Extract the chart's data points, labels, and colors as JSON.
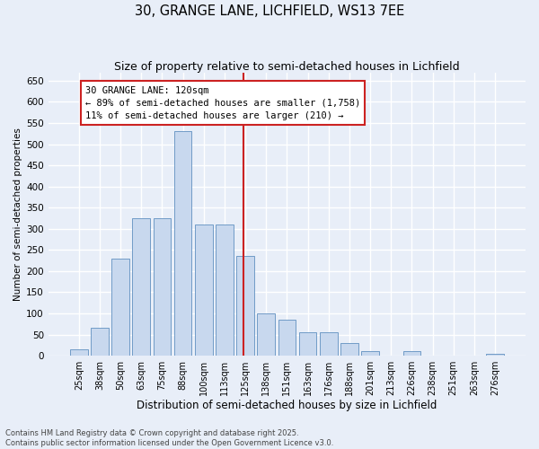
{
  "title": "30, GRANGE LANE, LICHFIELD, WS13 7EE",
  "subtitle": "Size of property relative to semi-detached houses in Lichfield",
  "xlabel": "Distribution of semi-detached houses by size in Lichfield",
  "ylabel": "Number of semi-detached properties",
  "categories": [
    "25sqm",
    "38sqm",
    "50sqm",
    "63sqm",
    "75sqm",
    "88sqm",
    "100sqm",
    "113sqm",
    "125sqm",
    "138sqm",
    "151sqm",
    "163sqm",
    "176sqm",
    "188sqm",
    "201sqm",
    "213sqm",
    "226sqm",
    "238sqm",
    "251sqm",
    "263sqm",
    "276sqm"
  ],
  "values": [
    15,
    65,
    230,
    325,
    325,
    530,
    310,
    310,
    235,
    100,
    85,
    55,
    55,
    30,
    10,
    0,
    10,
    0,
    0,
    0,
    5
  ],
  "bar_color": "#c8d8ee",
  "bar_edge_color": "#6090c0",
  "vline_pos": 7.925,
  "vline_color": "#cc2222",
  "annotation_text": "30 GRANGE LANE: 120sqm\n← 89% of semi-detached houses are smaller (1,758)\n11% of semi-detached houses are larger (210) →",
  "annotation_box_color": "#cc2222",
  "annotation_fontsize": 7.5,
  "ylim": [
    0,
    670
  ],
  "yticks": [
    0,
    50,
    100,
    150,
    200,
    250,
    300,
    350,
    400,
    450,
    500,
    550,
    600,
    650
  ],
  "title_fontsize": 10.5,
  "subtitle_fontsize": 9,
  "xlabel_fontsize": 8.5,
  "ylabel_fontsize": 7.5,
  "tick_fontsize": 7,
  "footnote": "Contains HM Land Registry data © Crown copyright and database right 2025.\nContains public sector information licensed under the Open Government Licence v3.0.",
  "footnote_fontsize": 6,
  "background_color": "#e8eef8",
  "grid_color": "#ffffff",
  "grid_linewidth": 1.0
}
